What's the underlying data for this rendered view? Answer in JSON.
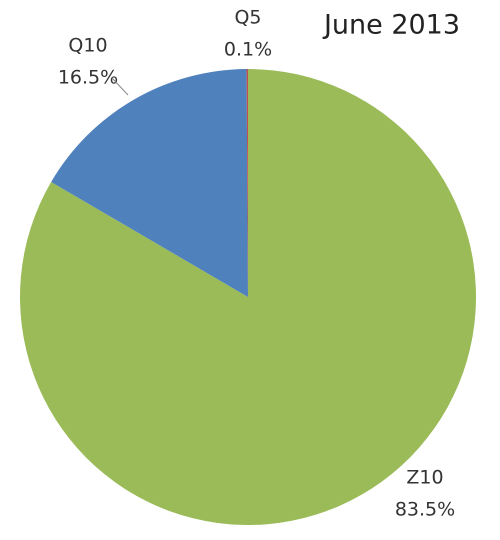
{
  "chart_data": {
    "type": "pie",
    "title": "June 2013",
    "categories": [
      "Z10",
      "Q10",
      "Q5"
    ],
    "values": [
      83.5,
      16.5,
      0.1
    ],
    "value_labels": [
      "83.5%",
      "16.5%",
      "0.1%"
    ],
    "colors": [
      "#9bbb59",
      "#4f81bd",
      "#c0504d"
    ]
  }
}
